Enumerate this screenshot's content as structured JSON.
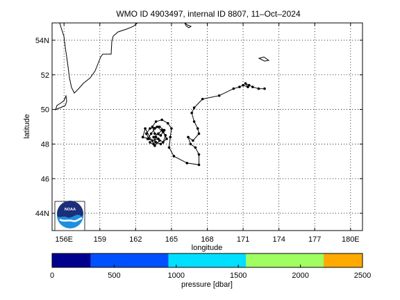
{
  "title": "WMO ID 4903497, internal ID 8807, 11–Oct–2024",
  "map": {
    "xlabel": "longitude",
    "ylabel": "latitude",
    "x_ticks": [
      {
        "lon": 156,
        "label": "156E"
      },
      {
        "lon": 159,
        "label": "159"
      },
      {
        "lon": 162,
        "label": "162"
      },
      {
        "lon": 165,
        "label": "165"
      },
      {
        "lon": 168,
        "label": "168"
      },
      {
        "lon": 171,
        "label": "171"
      },
      {
        "lon": 174,
        "label": "174"
      },
      {
        "lon": 177,
        "label": "177"
      },
      {
        "lon": 180,
        "label": "180E"
      }
    ],
    "y_ticks": [
      {
        "lat": 44,
        "label": "44N"
      },
      {
        "lat": 46,
        "label": "46"
      },
      {
        "lat": 48,
        "label": "48"
      },
      {
        "lat": 50,
        "label": "50"
      },
      {
        "lat": 52,
        "label": "52"
      },
      {
        "lat": 54,
        "label": "54N"
      }
    ],
    "lon_range": [
      155.0,
      181.0
    ],
    "lat_range": [
      43.0,
      55.0
    ],
    "grid": true,
    "land_color": "#000000"
  },
  "trajectory": {
    "units": "degrees lon/lat",
    "points": [
      [
        172.8,
        51.2
      ],
      [
        172.3,
        51.2
      ],
      [
        171.8,
        51.3
      ],
      [
        171.5,
        51.4
      ],
      [
        171.2,
        51.5
      ],
      [
        171.4,
        51.3
      ],
      [
        171.0,
        51.4
      ],
      [
        170.7,
        51.3
      ],
      [
        170.2,
        51.2
      ],
      [
        169.0,
        50.8
      ],
      [
        167.6,
        50.6
      ],
      [
        166.9,
        50.1
      ],
      [
        166.7,
        49.8
      ],
      [
        166.9,
        49.3
      ],
      [
        167.2,
        48.9
      ],
      [
        167.3,
        48.6
      ],
      [
        166.8,
        48.2
      ],
      [
        166.4,
        48.4
      ],
      [
        166.6,
        48.0
      ],
      [
        167.0,
        47.8
      ],
      [
        167.3,
        47.4
      ],
      [
        167.3,
        46.8
      ],
      [
        166.3,
        46.9
      ],
      [
        165.2,
        47.3
      ],
      [
        164.8,
        47.8
      ],
      [
        164.9,
        48.4
      ],
      [
        165.0,
        48.9
      ],
      [
        164.7,
        49.2
      ],
      [
        164.2,
        49.4
      ],
      [
        163.7,
        49.3
      ],
      [
        163.4,
        49.0
      ],
      [
        163.6,
        48.6
      ],
      [
        164.1,
        48.5
      ],
      [
        164.4,
        48.8
      ],
      [
        164.0,
        49.0
      ],
      [
        163.6,
        48.9
      ],
      [
        163.3,
        48.6
      ],
      [
        163.0,
        48.3
      ],
      [
        163.4,
        48.2
      ],
      [
        163.9,
        48.3
      ],
      [
        164.3,
        48.1
      ],
      [
        164.5,
        48.5
      ],
      [
        164.2,
        48.8
      ],
      [
        163.9,
        48.6
      ],
      [
        163.5,
        48.4
      ],
      [
        163.7,
        48.1
      ],
      [
        164.1,
        48.0
      ],
      [
        164.6,
        48.3
      ],
      [
        164.3,
        48.7
      ],
      [
        163.8,
        49.0
      ],
      [
        163.2,
        48.9
      ],
      [
        162.9,
        48.6
      ],
      [
        163.1,
        48.3
      ],
      [
        162.6,
        48.4
      ],
      [
        162.8,
        48.9
      ],
      [
        163.5,
        48.0
      ],
      [
        163.7,
        48.4
      ],
      [
        164.0,
        48.2
      ],
      [
        163.6,
        47.9
      ],
      [
        163.2,
        48.1
      ]
    ]
  },
  "colorbar": {
    "label": "pressure [dbar]",
    "ticks": [
      "0",
      "500",
      "1000",
      "1500",
      "2000",
      "2500"
    ],
    "range": [
      0,
      2500
    ],
    "segments": [
      {
        "from": 0,
        "to": 312,
        "color": "#00008f"
      },
      {
        "from": 312,
        "to": 937,
        "color": "#0050ff"
      },
      {
        "from": 937,
        "to": 1562,
        "color": "#00dfff"
      },
      {
        "from": 1562,
        "to": 2187,
        "color": "#9fff60"
      },
      {
        "from": 2187,
        "to": 2500,
        "color": "#ffaa00"
      }
    ]
  },
  "logo": {
    "text": "NOAA",
    "top_color": "#1b2f7a",
    "bottom_color": "#1e8fe0"
  }
}
